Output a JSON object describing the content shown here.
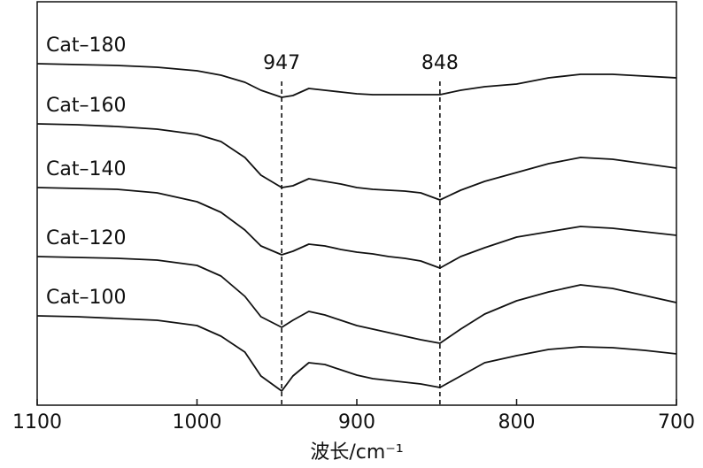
{
  "chart_data": {
    "type": "line",
    "x_label": "波长/cm⁻¹",
    "x": [
      1100,
      1075,
      1050,
      1025,
      1000,
      985,
      970,
      960,
      947,
      940,
      930,
      920,
      910,
      900,
      890,
      880,
      870,
      860,
      848,
      835,
      820,
      800,
      780,
      760,
      740,
      720,
      700
    ],
    "series": [
      {
        "name": "Cat–180",
        "color": "#111111",
        "values": [
          386,
          385,
          384,
          382,
          378,
          373,
          365,
          356,
          348,
          350,
          358,
          356,
          354,
          352,
          351,
          351,
          351,
          351,
          351,
          356,
          360,
          363,
          370,
          374,
          374,
          372,
          370
        ]
      },
      {
        "name": "Cat–160",
        "color": "#111111",
        "values": [
          318,
          317,
          315,
          312,
          306,
          298,
          280,
          260,
          246,
          248,
          256,
          253,
          250,
          246,
          244,
          243,
          242,
          240,
          232,
          243,
          253,
          263,
          273,
          280,
          278,
          273,
          268
        ]
      },
      {
        "name": "Cat–140",
        "color": "#111111",
        "values": [
          246,
          245,
          244,
          240,
          230,
          218,
          198,
          180,
          170,
          174,
          182,
          180,
          176,
          173,
          171,
          168,
          166,
          163,
          155,
          168,
          178,
          190,
          196,
          202,
          200,
          196,
          192
        ]
      },
      {
        "name": "Cat–120",
        "color": "#111111",
        "values": [
          168,
          167,
          166,
          164,
          158,
          146,
          123,
          100,
          88,
          96,
          106,
          102,
          96,
          90,
          86,
          82,
          78,
          74,
          70,
          86,
          103,
          118,
          128,
          136,
          132,
          124,
          116
        ]
      },
      {
        "name": "Cat–100",
        "color": "#111111",
        "values": [
          101,
          100,
          98,
          96,
          90,
          78,
          60,
          33,
          16,
          33,
          48,
          46,
          40,
          34,
          30,
          28,
          26,
          24,
          20,
          33,
          48,
          56,
          63,
          66,
          65,
          62,
          58
        ]
      }
    ],
    "annotations": [
      {
        "x": 947,
        "label": "947"
      },
      {
        "x": 848,
        "label": "848"
      }
    ],
    "xlim": [
      1100,
      700
    ],
    "xticks": [
      1100,
      1000,
      900,
      800,
      700
    ],
    "ylim": [
      0,
      456
    ]
  }
}
